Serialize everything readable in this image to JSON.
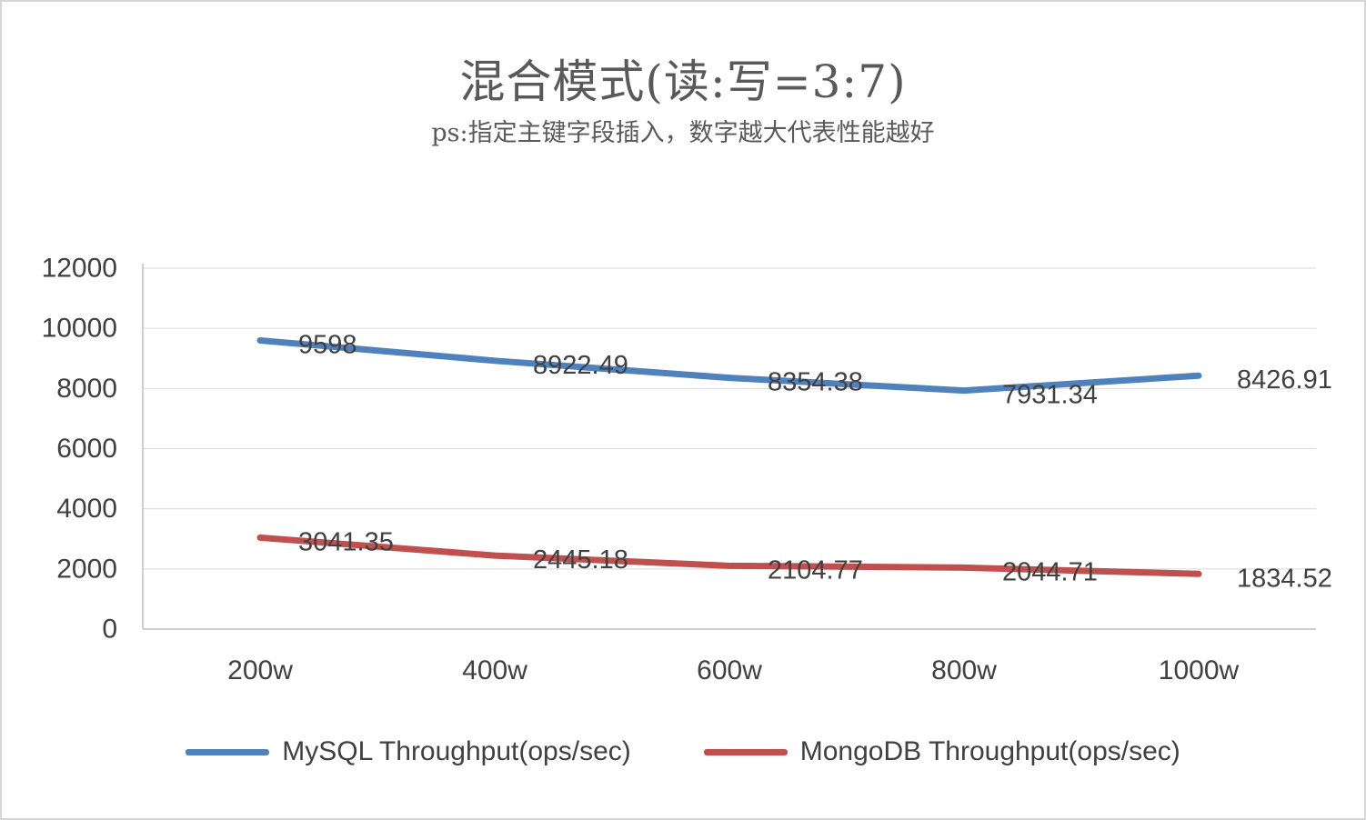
{
  "title": "混合模式(读:写=3:7)",
  "subtitle": "ps:指定主键字段插入，数字越大代表性能越好",
  "chart_data": {
    "type": "line",
    "title": "混合模式(读:写=3:7)",
    "subtitle": "ps:指定主键字段插入，数字越大代表性能越好",
    "categories": [
      "200w",
      "400w",
      "600w",
      "800w",
      "1000w"
    ],
    "series": [
      {
        "name": "MySQL Throughput(ops/sec)",
        "color": "#4F81BD",
        "values": [
          9598,
          8922.49,
          8354.38,
          7931.34,
          8426.91
        ]
      },
      {
        "name": "MongoDB Throughput(ops/sec)",
        "color": "#C0504D",
        "values": [
          3041.35,
          2445.18,
          2104.77,
          2044.71,
          1834.52
        ]
      }
    ],
    "xlabel": "",
    "ylabel": "",
    "ylim": [
      0,
      12000
    ],
    "ytick_step": 2000,
    "grid": true,
    "legend_position": "bottom",
    "data_labels": true
  }
}
